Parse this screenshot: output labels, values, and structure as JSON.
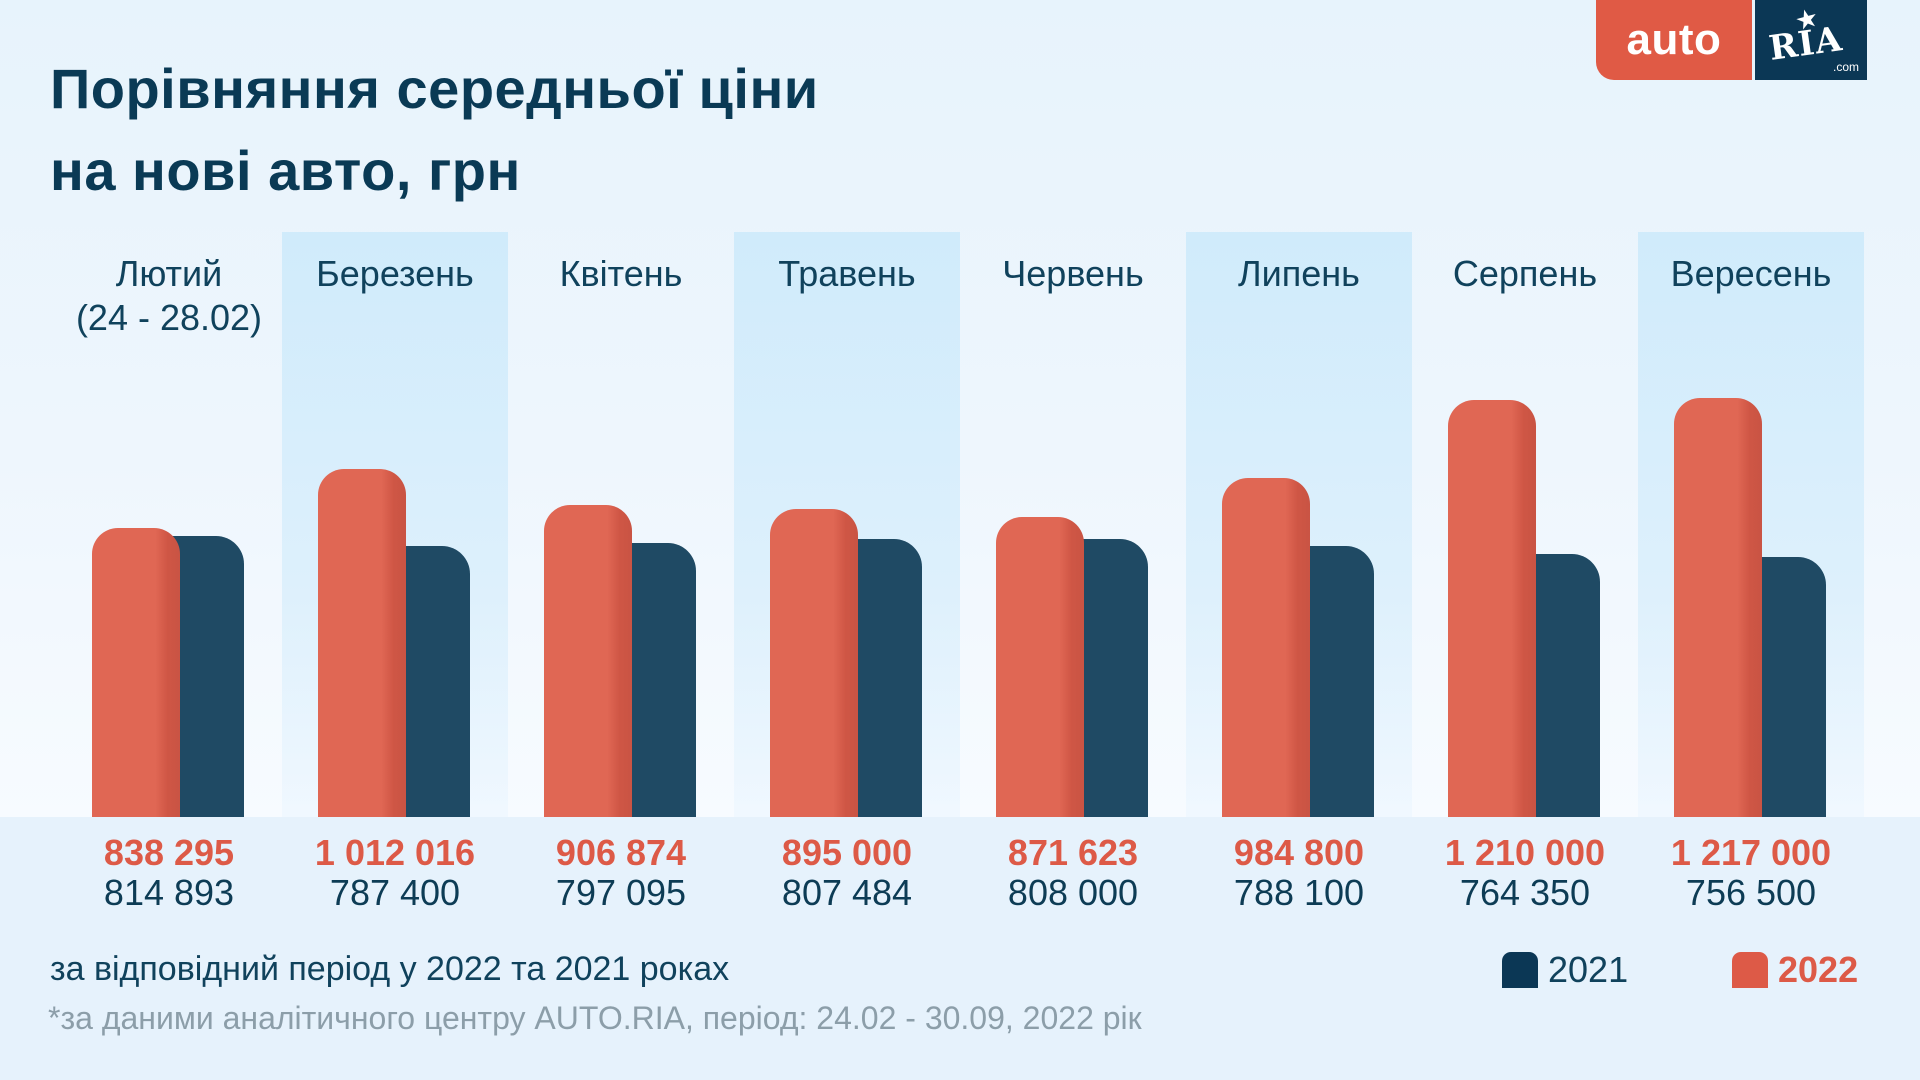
{
  "header": {
    "title_line1": "Порівняння середньої ціни",
    "title_line2": "на нові авто, грн"
  },
  "logo": {
    "auto": "auto",
    "ria": "RIA",
    "com": ".com",
    "star": "★"
  },
  "colors": {
    "series_2022": "#e06754",
    "series_2021": "#1f4a64",
    "brand_red": "#e05a45",
    "brand_navy": "#0b3755"
  },
  "chart_data": {
    "type": "bar",
    "title": "Порівняння середньої ціни на нові авто, грн",
    "xlabel": "",
    "ylabel": "",
    "ylim": [
      0,
      1400000
    ],
    "grid": false,
    "legend_position": "bottom-right",
    "categories": [
      {
        "label": "Лютий",
        "sublabel": "(24 - 28.02)"
      },
      {
        "label": "Березень",
        "sublabel": ""
      },
      {
        "label": "Квітень",
        "sublabel": ""
      },
      {
        "label": "Травень",
        "sublabel": ""
      },
      {
        "label": "Червень",
        "sublabel": ""
      },
      {
        "label": "Липень",
        "sublabel": ""
      },
      {
        "label": "Серпень",
        "sublabel": ""
      },
      {
        "label": "Вересень",
        "sublabel": ""
      }
    ],
    "series": [
      {
        "name": "2022",
        "values": [
          838295,
          1012016,
          906874,
          895000,
          871623,
          984800,
          1210000,
          1217000
        ],
        "labels": [
          "838 295",
          "1 012 016",
          "906 874",
          "895 000",
          "871 623",
          "984 800",
          "1 210 000",
          "1 217 000"
        ]
      },
      {
        "name": "2021",
        "values": [
          814893,
          787400,
          797095,
          807484,
          808000,
          788100,
          764350,
          756500
        ],
        "labels": [
          "814 893",
          "787 400",
          "797 095",
          "807 484",
          "808 000",
          "788 100",
          "764 350",
          "756 500"
        ]
      }
    ],
    "highlighted_columns": [
      1,
      3,
      5,
      7
    ]
  },
  "legend": {
    "items": [
      {
        "label": "2021"
      },
      {
        "label": "2022"
      }
    ]
  },
  "footer": {
    "subtitle": "за відповідний період у 2022 та 2021 роках",
    "source": "*за даними аналітичного центру AUTO.RIA, період: 24.02 - 30.09, 2022 рік"
  }
}
